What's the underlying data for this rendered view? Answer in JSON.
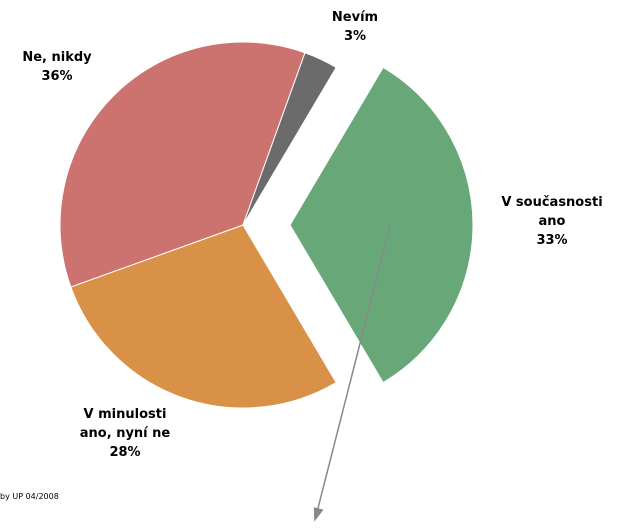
{
  "chart_data": {
    "type": "pie",
    "categories": [
      "V současnosti ano",
      "V minulosti ano, nyní ne",
      "Ne, nikdy",
      "Nevím"
    ],
    "values": [
      33,
      28,
      36,
      3
    ],
    "value_labels": [
      "33%",
      "28%",
      "36%",
      "3%"
    ],
    "colors": [
      "#68a878",
      "#d99148",
      "#cc7370",
      "#6b6b6b"
    ],
    "exploded": [
      0
    ],
    "note": "by UP 04/2008"
  }
}
